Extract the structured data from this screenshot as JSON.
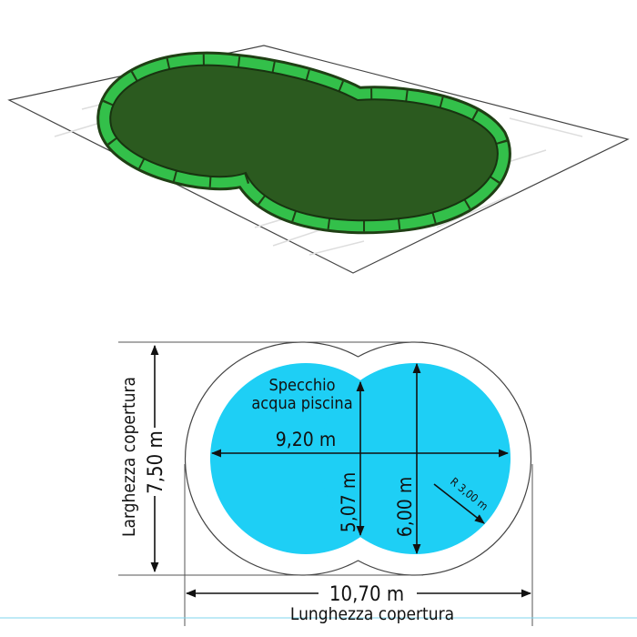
{
  "illustration": {
    "cover_color": "#2b5a1f",
    "edge_color": "#33c04a"
  },
  "diagram": {
    "water_color": "#1ecff5",
    "water_label_line1": "Specchio",
    "water_label_line2": "acqua piscina",
    "length_water": "9,20 m",
    "neck_width": "5,07 m",
    "lobe_diameter": "6,00 m",
    "radius": "R 3,00 m",
    "cover_width_value": "7,50 m",
    "cover_width_label": "Larghezza copertura",
    "cover_length_value": "10,70 m",
    "cover_length_label": "Lunghezza copertura"
  }
}
